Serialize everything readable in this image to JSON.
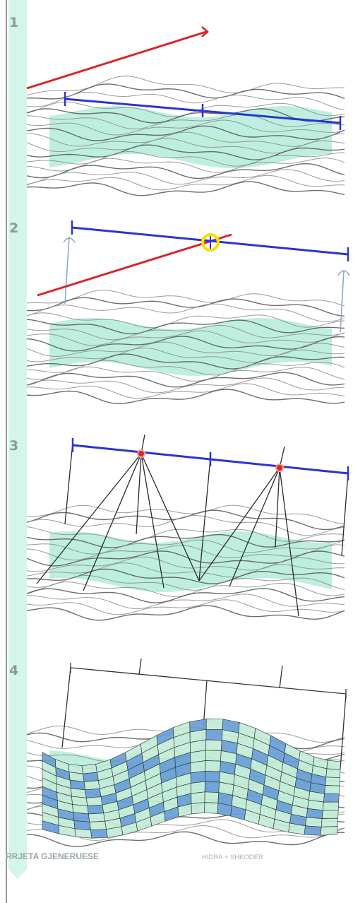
{
  "steps": [
    "1",
    "2",
    "3",
    "4"
  ],
  "footer": {
    "title": "RRJETA GJENERUESE",
    "subtitle": "HIDRA + SHKODER"
  },
  "colors": {
    "background": "#ffffff",
    "accent_strip": "#d4f6ea",
    "terrain_line": "#8a8a8a",
    "terrain_fill": "#a8ead3",
    "red_line": "#d8262b",
    "blue_line": "#2a35d0",
    "grid_blue": "#6a9fd8",
    "grid_green": "#c4ecd9",
    "highlight": "#f5e100"
  }
}
